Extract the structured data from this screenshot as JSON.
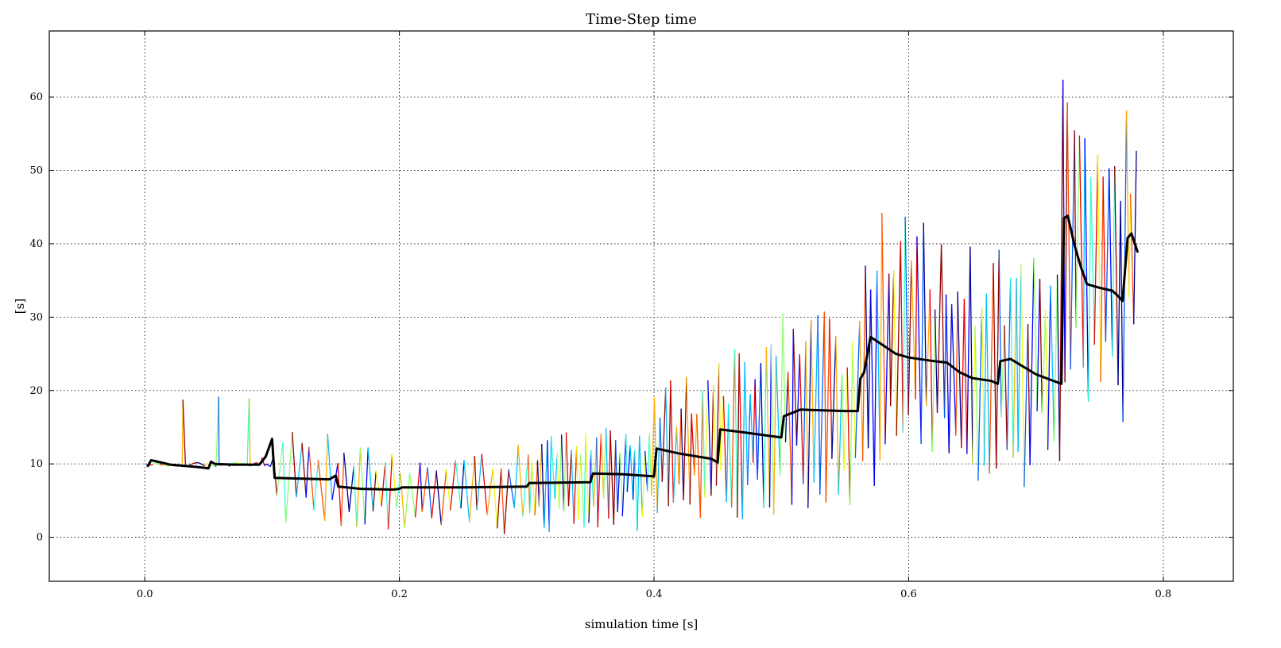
{
  "chart_data": {
    "type": "line",
    "title": "Time-Step time",
    "xlabel": "simulation time [s]",
    "ylabel": "[s]",
    "xlim": [
      -0.075,
      0.855
    ],
    "ylim": [
      -6,
      69
    ],
    "xticks": [
      0.0,
      0.2,
      0.4,
      0.6,
      0.8
    ],
    "xtick_labels": [
      "0.0",
      "0.2",
      "0.4",
      "0.6",
      "0.8"
    ],
    "yticks": [
      0,
      10,
      20,
      30,
      40,
      50,
      60
    ],
    "ytick_labels": [
      "0",
      "10",
      "20",
      "30",
      "40",
      "50",
      "60"
    ],
    "grid": true,
    "legend": "none",
    "colormap_series": {
      "colormap": "jet",
      "colors": [
        "#00008f",
        "#0000ff",
        "#0060ff",
        "#00c0ff",
        "#2fffcf",
        "#8fff70",
        "#efff10",
        "#ffb000",
        "#ff5000",
        "#ef0000",
        "#8f0000"
      ],
      "segments": [
        {
          "x0": 0.0,
          "x1": 0.1,
          "low": 9.6,
          "high": 10.2,
          "n": 35,
          "spikes": [
            [
              0.03,
              18.7
            ],
            [
              0.058,
              19.1
            ],
            [
              0.082,
              18.9
            ],
            [
              0.092,
              10.8
            ]
          ]
        },
        {
          "x0": 0.1,
          "x1": 0.15,
          "low": 0.5,
          "high": 15.4,
          "n": 14
        },
        {
          "x0": 0.15,
          "x1": 0.2,
          "low": 0.5,
          "high": 13.0,
          "n": 16
        },
        {
          "x0": 0.2,
          "x1": 0.25,
          "low": 0.5,
          "high": 13.0,
          "n": 14
        },
        {
          "x0": 0.25,
          "x1": 0.3,
          "low": 0.5,
          "high": 13.2,
          "n": 14
        },
        {
          "x0": 0.3,
          "x1": 0.35,
          "low": 0.6,
          "high": 14.3,
          "n": 26
        },
        {
          "x0": 0.35,
          "x1": 0.4,
          "low": 0.9,
          "high": 16.5,
          "n": 26
        },
        {
          "x0": 0.4,
          "x1": 0.45,
          "low": 1.7,
          "high": 22.0,
          "n": 24
        },
        {
          "x0": 0.45,
          "x1": 0.5,
          "low": 2.5,
          "high": 26.3,
          "n": 24
        },
        {
          "x0": 0.5,
          "x1": 0.565,
          "low": 3.5,
          "high": 31.0,
          "n": 28
        },
        {
          "x0": 0.565,
          "x1": 0.62,
          "low": 7.0,
          "high": 44.2,
          "n": 24
        },
        {
          "x0": 0.62,
          "x1": 0.67,
          "low": 5.2,
          "high": 40.5,
          "n": 22
        },
        {
          "x0": 0.67,
          "x1": 0.72,
          "low": 5.6,
          "high": 40.3,
          "n": 22
        },
        {
          "x0": 0.72,
          "x1": 0.77,
          "low": 13.6,
          "high": 63.0,
          "n": 22
        },
        {
          "x0": 0.77,
          "x1": 0.78,
          "low": 21.0,
          "high": 60.4,
          "n": 5
        }
      ]
    },
    "mean_series": {
      "color": "#000000",
      "x": [
        0.002,
        0.005,
        0.02,
        0.04,
        0.05,
        0.052,
        0.055,
        0.07,
        0.09,
        0.095,
        0.1,
        0.102,
        0.12,
        0.145,
        0.15,
        0.152,
        0.17,
        0.195,
        0.2,
        0.202,
        0.25,
        0.3,
        0.302,
        0.35,
        0.352,
        0.375,
        0.4,
        0.402,
        0.42,
        0.445,
        0.45,
        0.452,
        0.47,
        0.5,
        0.502,
        0.515,
        0.55,
        0.56,
        0.562,
        0.565,
        0.57,
        0.59,
        0.6,
        0.62,
        0.63,
        0.64,
        0.65,
        0.665,
        0.67,
        0.672,
        0.68,
        0.7,
        0.72,
        0.722,
        0.725,
        0.73,
        0.735,
        0.74,
        0.75,
        0.76,
        0.765,
        0.768,
        0.772,
        0.775,
        0.78
      ],
      "y": [
        9.6,
        10.5,
        9.9,
        9.6,
        9.4,
        10.3,
        10.0,
        9.9,
        9.9,
        11.0,
        13.4,
        8.1,
        8.0,
        7.9,
        8.4,
        6.9,
        6.6,
        6.5,
        6.6,
        6.8,
        6.8,
        6.9,
        7.4,
        7.5,
        8.7,
        8.6,
        8.3,
        12.1,
        11.4,
        10.7,
        10.2,
        14.7,
        14.3,
        13.6,
        16.5,
        17.4,
        17.2,
        17.2,
        21.6,
        22.5,
        27.3,
        25.0,
        24.5,
        24.0,
        23.8,
        22.5,
        21.7,
        21.3,
        20.9,
        24.0,
        24.3,
        22.2,
        20.9,
        43.5,
        43.8,
        40.0,
        37.0,
        34.5,
        34.0,
        33.6,
        32.8,
        32.2,
        40.8,
        41.4,
        38.8
      ]
    }
  }
}
